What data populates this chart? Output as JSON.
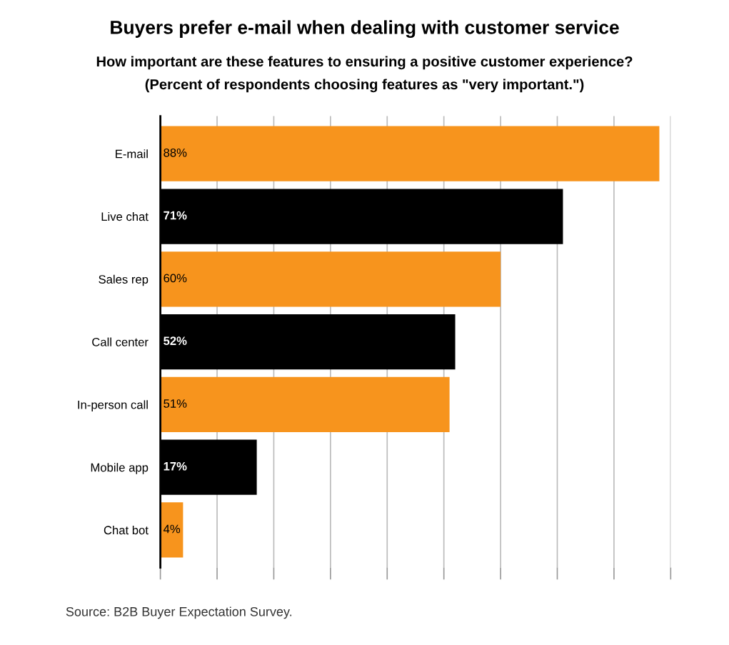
{
  "chart_data": {
    "type": "bar",
    "orientation": "horizontal",
    "title": "Buyers prefer e-mail when dealing with customer service",
    "subtitle": "How important are these features to ensuring a positive customer experience?\n(Percent of respondents choosing features as \"very important.\")",
    "categories": [
      "E-mail",
      "Live chat",
      "Sales rep",
      "Call center",
      "In-person call",
      "Mobile app",
      "Chat bot"
    ],
    "values": [
      88,
      71,
      60,
      52,
      51,
      17,
      4
    ],
    "value_labels": [
      "88%",
      "71%",
      "60%",
      "52%",
      "51%",
      "17%",
      "4%"
    ],
    "colors": [
      "#f7941d",
      "#000000",
      "#f7941d",
      "#000000",
      "#f7941d",
      "#000000",
      "#f7941d"
    ],
    "xlim": [
      0,
      90
    ],
    "xticks": [
      {
        "value": 0,
        "label": null
      },
      {
        "value": 10,
        "label": null
      },
      {
        "value": 20,
        "label": null
      },
      {
        "value": 30,
        "label": null
      },
      {
        "value": 40,
        "label": null
      },
      {
        "value": 50,
        "label": null
      },
      {
        "value": 60,
        "label": null
      },
      {
        "value": 70,
        "label": null
      },
      {
        "value": 80,
        "label": null
      },
      {
        "value": 90,
        "label": null
      }
    ],
    "tick_labels": "y",
    "grid": "x",
    "legend": false,
    "annotations": [
      "Source: B2B Buyer Expectation Survey."
    ]
  }
}
